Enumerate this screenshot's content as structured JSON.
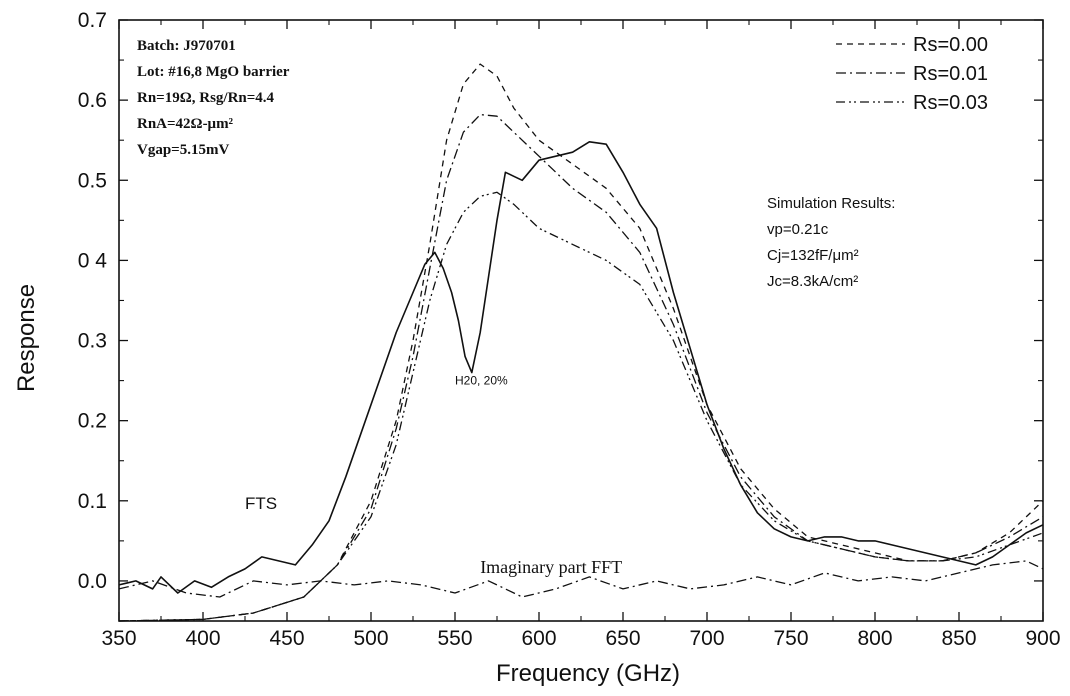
{
  "chart_data": {
    "type": "line",
    "xlabel": "Frequency (GHz)",
    "ylabel": "Response",
    "xlim": [
      350,
      900
    ],
    "ylim": [
      -0.05,
      0.7
    ],
    "x_ticks": [
      350,
      400,
      450,
      500,
      550,
      600,
      650,
      700,
      750,
      800,
      850,
      900
    ],
    "y_ticks": [
      0.0,
      0.1,
      0.2,
      0.3,
      0.4,
      0.5,
      0.6,
      0.7
    ],
    "y_tick_labels": [
      "0.0",
      "0.1",
      "0.2",
      "0.3",
      "0 4",
      "0.5",
      "0.6",
      "0.7"
    ],
    "grid": false,
    "legend_position": "top-right",
    "legend": [
      {
        "label": "Rs=0.00",
        "series": "Rs=0.00"
      },
      {
        "label": "Rs=0.01",
        "series": "Rs=0.01"
      },
      {
        "label": "Rs=0.03",
        "series": "Rs=0.03"
      }
    ],
    "info_box": [
      "Batch: J970701",
      "Lot: #16,8 MgO barrier",
      "Rn=19Ω, Rsg/Rn=4.4",
      "RnA=42Ω-μm²",
      "Vgap=5.15mV"
    ],
    "simulation_results": [
      "Simulation Results:",
      "vp=0.21c",
      "Cj=132fF/μm²",
      "Jc=8.3kA/cm²"
    ],
    "annotations": [
      {
        "text": "FTS",
        "x": 425,
        "y": 0.09
      },
      {
        "text": "H20, 20%",
        "x": 550,
        "y": 0.245
      },
      {
        "text": "Imaginary part FFT",
        "x": 565,
        "y": 0.01
      }
    ],
    "series": [
      {
        "name": "FTS",
        "style": "solid",
        "x": [
          350,
          360,
          370,
          375,
          385,
          395,
          405,
          415,
          425,
          435,
          445,
          455,
          465,
          475,
          485,
          495,
          505,
          515,
          525,
          532,
          538,
          543,
          548,
          552,
          556,
          560,
          565,
          570,
          575,
          580,
          585,
          590,
          600,
          610,
          620,
          630,
          640,
          650,
          660,
          670,
          680,
          690,
          700,
          710,
          720,
          730,
          740,
          750,
          760,
          770,
          780,
          790,
          800,
          810,
          820,
          830,
          840,
          850,
          860,
          870,
          880,
          890,
          900
        ],
        "y": [
          -0.005,
          0.0,
          -0.01,
          0.005,
          -0.015,
          0.0,
          -0.008,
          0.005,
          0.015,
          0.03,
          0.025,
          0.02,
          0.045,
          0.075,
          0.13,
          0.19,
          0.25,
          0.31,
          0.36,
          0.395,
          0.41,
          0.39,
          0.36,
          0.325,
          0.28,
          0.26,
          0.31,
          0.38,
          0.45,
          0.51,
          0.505,
          0.5,
          0.525,
          0.53,
          0.535,
          0.548,
          0.545,
          0.51,
          0.47,
          0.44,
          0.36,
          0.29,
          0.22,
          0.165,
          0.12,
          0.085,
          0.065,
          0.055,
          0.05,
          0.055,
          0.055,
          0.05,
          0.05,
          0.045,
          0.04,
          0.035,
          0.03,
          0.025,
          0.02,
          0.03,
          0.045,
          0.06,
          0.07
        ]
      },
      {
        "name": "Rs=0.00",
        "style": "dashed",
        "x": [
          350,
          400,
          430,
          460,
          480,
          500,
          515,
          525,
          535,
          545,
          555,
          565,
          575,
          585,
          600,
          620,
          640,
          660,
          680,
          700,
          720,
          740,
          760,
          780,
          800,
          820,
          840,
          860,
          880,
          900
        ],
        "y": [
          -0.05,
          -0.048,
          -0.04,
          -0.02,
          0.02,
          0.1,
          0.2,
          0.3,
          0.42,
          0.55,
          0.62,
          0.645,
          0.63,
          0.59,
          0.55,
          0.52,
          0.49,
          0.44,
          0.34,
          0.22,
          0.14,
          0.09,
          0.055,
          0.045,
          0.035,
          0.025,
          0.025,
          0.035,
          0.06,
          0.1
        ]
      },
      {
        "name": "Rs=0.01",
        "style": "dash-dot",
        "x": [
          350,
          400,
          430,
          460,
          480,
          500,
          515,
          525,
          535,
          545,
          555,
          565,
          575,
          585,
          600,
          620,
          640,
          660,
          680,
          700,
          720,
          740,
          760,
          780,
          800,
          820,
          840,
          860,
          880,
          900
        ],
        "y": [
          -0.05,
          -0.048,
          -0.04,
          -0.02,
          0.02,
          0.09,
          0.19,
          0.28,
          0.39,
          0.5,
          0.56,
          0.582,
          0.58,
          0.56,
          0.53,
          0.49,
          0.46,
          0.41,
          0.32,
          0.21,
          0.13,
          0.08,
          0.05,
          0.04,
          0.03,
          0.025,
          0.025,
          0.035,
          0.055,
          0.08
        ]
      },
      {
        "name": "Rs=0.03",
        "style": "dash-dot-dot",
        "x": [
          350,
          400,
          430,
          460,
          480,
          500,
          515,
          525,
          535,
          545,
          555,
          565,
          575,
          585,
          600,
          620,
          640,
          660,
          680,
          700,
          720,
          740,
          760,
          780,
          800,
          820,
          840,
          860,
          880,
          900
        ],
        "y": [
          -0.05,
          -0.048,
          -0.04,
          -0.02,
          0.02,
          0.08,
          0.17,
          0.26,
          0.35,
          0.42,
          0.46,
          0.48,
          0.485,
          0.47,
          0.44,
          0.42,
          0.4,
          0.37,
          0.3,
          0.2,
          0.12,
          0.075,
          0.05,
          0.04,
          0.03,
          0.025,
          0.025,
          0.03,
          0.045,
          0.06
        ]
      },
      {
        "name": "Imaginary part FFT",
        "style": "dash-dot",
        "x": [
          350,
          370,
          390,
          410,
          430,
          450,
          470,
          490,
          510,
          530,
          550,
          570,
          590,
          610,
          630,
          650,
          670,
          690,
          710,
          730,
          750,
          770,
          790,
          810,
          830,
          850,
          870,
          890,
          900
        ],
        "y": [
          -0.01,
          0.0,
          -0.015,
          -0.02,
          0.0,
          -0.005,
          0.0,
          -0.005,
          0.0,
          -0.005,
          -0.015,
          0.0,
          -0.02,
          -0.01,
          0.005,
          -0.01,
          0.0,
          -0.01,
          -0.005,
          0.005,
          -0.005,
          0.01,
          0.0,
          0.005,
          0.0,
          0.01,
          0.02,
          0.025,
          0.015
        ]
      }
    ]
  }
}
